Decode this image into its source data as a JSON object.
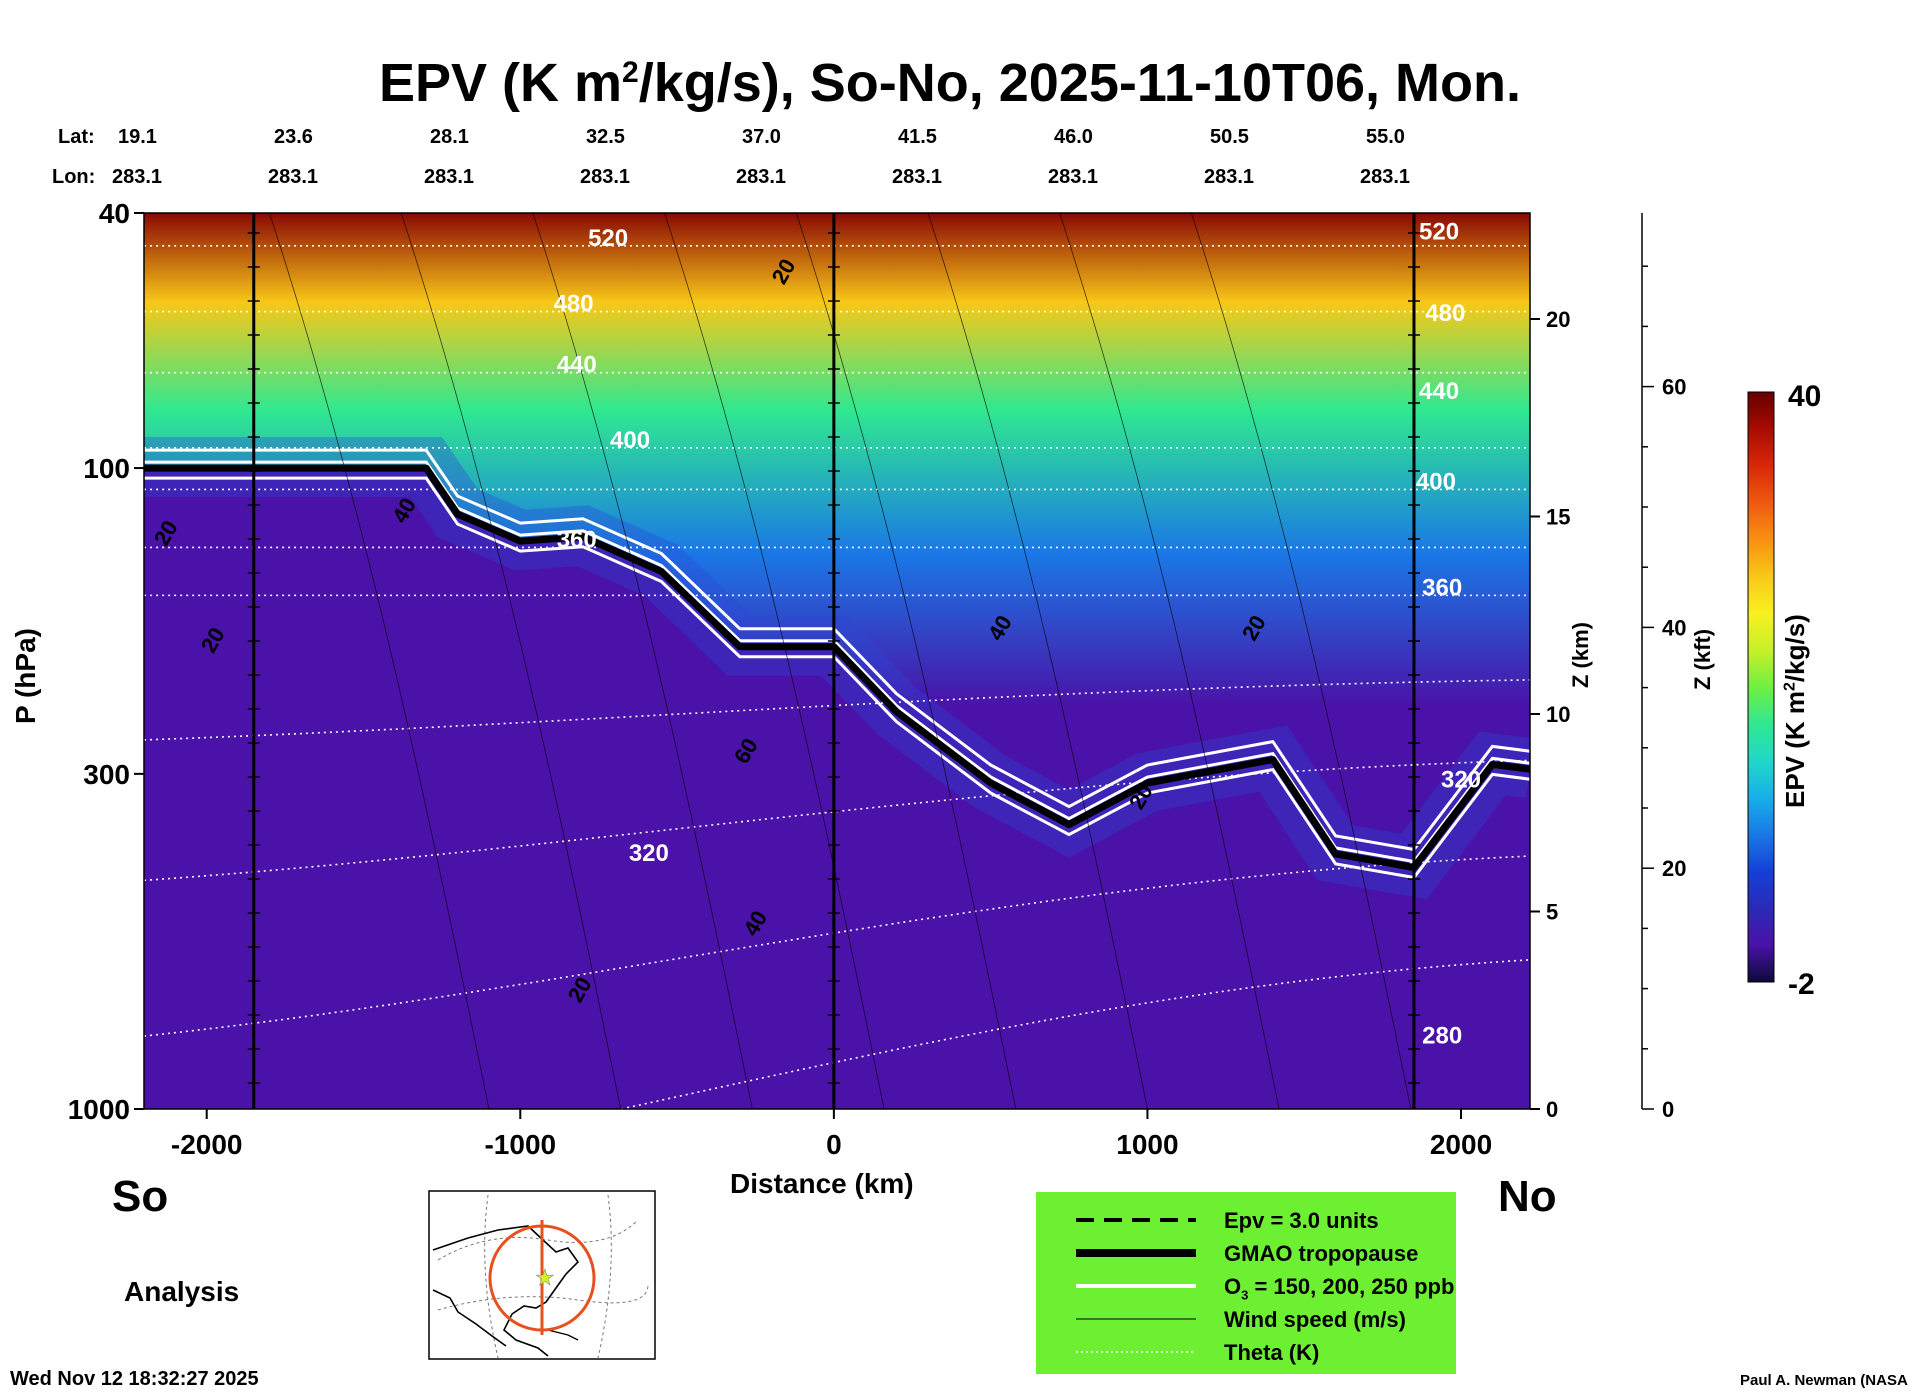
{
  "header": {
    "title_part1": "EPV (K m",
    "title_sup": "2",
    "title_part2": "/kg/s), So-No, 2025-11-10T06, Mon."
  },
  "latlon": {
    "lat_label": "Lat:",
    "lon_label": "Lon:",
    "lats": [
      "19.1",
      "23.6",
      "28.1",
      "32.5",
      "37.0",
      "41.5",
      "46.0",
      "50.5",
      "55.0"
    ],
    "lons": [
      "283.1",
      "283.1",
      "283.1",
      "283.1",
      "283.1",
      "283.1",
      "283.1",
      "283.1",
      "283.1"
    ]
  },
  "chart_data": {
    "type": "heatmap",
    "title": "EPV (K m2/kg/s), So-No, 2025-11-10T06, Mon.",
    "xlabel": "Distance (km)",
    "ylabel": "P (hPa)",
    "xlim": [
      -2200,
      2220
    ],
    "ylim": [
      1000,
      40
    ],
    "x_ticks": [
      {
        "value": -2000,
        "label": "-2000"
      },
      {
        "value": -1000,
        "label": "-1000"
      },
      {
        "value": 0,
        "label": "0"
      },
      {
        "value": 1000,
        "label": "1000"
      },
      {
        "value": 2000,
        "label": "2000"
      }
    ],
    "p_ticks": [
      {
        "value": 40,
        "label": "40"
      },
      {
        "value": 100,
        "label": "100"
      },
      {
        "value": 300,
        "label": "300"
      },
      {
        "value": 1000,
        "label": "1000"
      }
    ],
    "z_km_label": "Z (km)",
    "z_km_ticks": [
      {
        "value": 0,
        "label": "0"
      },
      {
        "value": 5,
        "label": "5"
      },
      {
        "value": 10,
        "label": "10"
      },
      {
        "value": 15,
        "label": "15"
      },
      {
        "value": 20,
        "label": "20"
      }
    ],
    "z_kft_label": "Z (kft)",
    "z_kft_ticks": [
      {
        "value": 0,
        "label": "0"
      },
      {
        "value": 20,
        "label": "20"
      },
      {
        "value": 40,
        "label": "40"
      },
      {
        "value": 60,
        "label": "60"
      }
    ],
    "vertical_markers_km": [
      -1850,
      0,
      1850
    ],
    "colorbar": {
      "label": "EPV (K m2/kg/s)",
      "min": -2,
      "max": 40,
      "min_label": "-2",
      "max_label": "40",
      "colors": [
        "#0b0a3a",
        "#4a12a8",
        "#2a2ab8",
        "#1540d8",
        "#1a78e6",
        "#18b0e8",
        "#20d8c8",
        "#30e890",
        "#70f040",
        "#c8f028",
        "#f8f020",
        "#f8c818",
        "#f89010",
        "#f05810",
        "#d82808",
        "#a80a02",
        "#640000"
      ]
    },
    "theta_labels": [
      {
        "text": "520",
        "x": -720,
        "p": 45
      },
      {
        "text": "480",
        "x": -830,
        "p": 57
      },
      {
        "text": "440",
        "x": -820,
        "p": 71
      },
      {
        "text": "400",
        "x": -650,
        "p": 93
      },
      {
        "text": "360",
        "x": -820,
        "p": 133
      },
      {
        "text": "320",
        "x": -590,
        "p": 410
      },
      {
        "text": "520",
        "x": 1930,
        "p": 44
      },
      {
        "text": "480",
        "x": 1950,
        "p": 59
      },
      {
        "text": "440",
        "x": 1930,
        "p": 78
      },
      {
        "text": "400",
        "x": 1920,
        "p": 108
      },
      {
        "text": "360",
        "x": 1940,
        "p": 158
      },
      {
        "text": "320",
        "x": 2000,
        "p": 315
      },
      {
        "text": "280",
        "x": 1940,
        "p": 790
      }
    ],
    "wind_labels": [
      {
        "text": "20",
        "x": -2110,
        "p": 128
      },
      {
        "text": "20",
        "x": -1960,
        "p": 188
      },
      {
        "text": "40",
        "x": -1350,
        "p": 118
      },
      {
        "text": "20",
        "x": -140,
        "p": 50
      },
      {
        "text": "40",
        "x": 550,
        "p": 180
      },
      {
        "text": "20",
        "x": 1360,
        "p": 180
      },
      {
        "text": "60",
        "x": -260,
        "p": 280
      },
      {
        "text": "20",
        "x": 1000,
        "p": 330
      },
      {
        "text": "40",
        "x": -230,
        "p": 520
      },
      {
        "text": "20",
        "x": -790,
        "p": 660
      }
    ],
    "tropopause_pressure_hPa": [
      {
        "x": -2200,
        "p": 100
      },
      {
        "x": -1300,
        "p": 100
      },
      {
        "x": -1200,
        "p": 118
      },
      {
        "x": -1000,
        "p": 130
      },
      {
        "x": -800,
        "p": 128
      },
      {
        "x": -550,
        "p": 145
      },
      {
        "x": -300,
        "p": 190
      },
      {
        "x": 0,
        "p": 190
      },
      {
        "x": 200,
        "p": 240
      },
      {
        "x": 500,
        "p": 310
      },
      {
        "x": 750,
        "p": 360
      },
      {
        "x": 1000,
        "p": 310
      },
      {
        "x": 1400,
        "p": 285
      },
      {
        "x": 1600,
        "p": 400
      },
      {
        "x": 1850,
        "p": 420
      },
      {
        "x": 2100,
        "p": 290
      },
      {
        "x": 2220,
        "p": 295
      }
    ]
  },
  "footer": {
    "south_label": "So",
    "north_label": "No",
    "analysis_label": "Analysis",
    "timestamp": "Wed Nov 12 18:32:27 2025",
    "credit": "Paul A. Newman (NASA"
  },
  "legend": {
    "items": [
      {
        "label": "Epv = 3.0 units"
      },
      {
        "label": "GMAO tropopause"
      },
      {
        "label_pre": "O",
        "label_sub": "3",
        "label_post": " = 150, 200, 250 ppb"
      },
      {
        "label": "Wind speed (m/s)"
      },
      {
        "label": "Theta (K)"
      }
    ]
  },
  "colors": {
    "legend_bg": "#6ef032",
    "map_circle": "#e8501c",
    "map_star": "#d8f020"
  }
}
